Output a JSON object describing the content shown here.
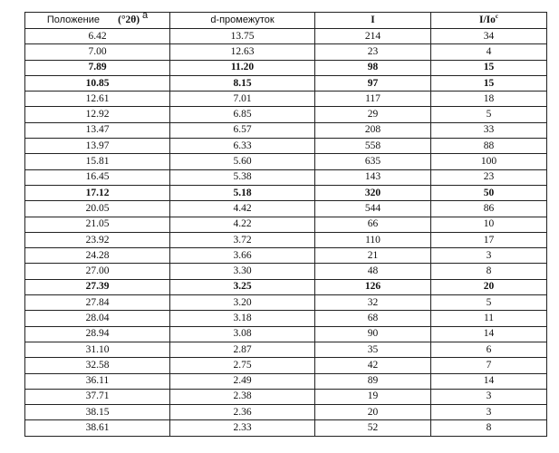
{
  "headers": {
    "position_label": "Положение",
    "position_unit": "(°2θ)",
    "position_sup": "a",
    "d_spacing": "d-промежуток",
    "intensity": "I",
    "rel_intensity": "I/Io",
    "rel_intensity_sup": "c"
  },
  "rows": [
    {
      "pos": "6.42",
      "d": "13.75",
      "i": "214",
      "rel": "34",
      "bold": false
    },
    {
      "pos": "7.00",
      "d": "12.63",
      "i": "23",
      "rel": "4",
      "bold": false
    },
    {
      "pos": "7.89",
      "d": "11.20",
      "i": "98",
      "rel": "15",
      "bold": true
    },
    {
      "pos": "10.85",
      "d": "8.15",
      "i": "97",
      "rel": "15",
      "bold": true
    },
    {
      "pos": "12.61",
      "d": "7.01",
      "i": "117",
      "rel": "18",
      "bold": false
    },
    {
      "pos": "12.92",
      "d": "6.85",
      "i": "29",
      "rel": "5",
      "bold": false
    },
    {
      "pos": "13.47",
      "d": "6.57",
      "i": "208",
      "rel": "33",
      "bold": false
    },
    {
      "pos": "13.97",
      "d": "6.33",
      "i": "558",
      "rel": "88",
      "bold": false
    },
    {
      "pos": "15.81",
      "d": "5.60",
      "i": "635",
      "rel": "100",
      "bold": false
    },
    {
      "pos": "16.45",
      "d": "5.38",
      "i": "143",
      "rel": "23",
      "bold": false
    },
    {
      "pos": "17.12",
      "d": "5.18",
      "i": "320",
      "rel": "50",
      "bold": true
    },
    {
      "pos": "20.05",
      "d": "4.42",
      "i": "544",
      "rel": "86",
      "bold": false
    },
    {
      "pos": "21.05",
      "d": "4.22",
      "i": "66",
      "rel": "10",
      "bold": false
    },
    {
      "pos": "23.92",
      "d": "3.72",
      "i": "110",
      "rel": "17",
      "bold": false
    },
    {
      "pos": "24.28",
      "d": "3.66",
      "i": "21",
      "rel": "3",
      "bold": false
    },
    {
      "pos": "27.00",
      "d": "3.30",
      "i": "48",
      "rel": "8",
      "bold": false
    },
    {
      "pos": "27.39",
      "d": "3.25",
      "i": "126",
      "rel": "20",
      "bold": true
    },
    {
      "pos": "27.84",
      "d": "3.20",
      "i": "32",
      "rel": "5",
      "bold": false
    },
    {
      "pos": "28.04",
      "d": "3.18",
      "i": "68",
      "rel": "11",
      "bold": false
    },
    {
      "pos": "28.94",
      "d": "3.08",
      "i": "90",
      "rel": "14",
      "bold": false
    },
    {
      "pos": "31.10",
      "d": "2.87",
      "i": "35",
      "rel": "6",
      "bold": false
    },
    {
      "pos": "32.58",
      "d": "2.75",
      "i": "42",
      "rel": "7",
      "bold": false
    },
    {
      "pos": "36.11",
      "d": "2.49",
      "i": "89",
      "rel": "14",
      "bold": false
    },
    {
      "pos": "37.71",
      "d": "2.38",
      "i": "19",
      "rel": "3",
      "bold": false
    },
    {
      "pos": "38.15",
      "d": "2.36",
      "i": "20",
      "rel": "3",
      "bold": false
    },
    {
      "pos": "38.61",
      "d": "2.33",
      "i": "52",
      "rel": "8",
      "bold": false
    }
  ]
}
